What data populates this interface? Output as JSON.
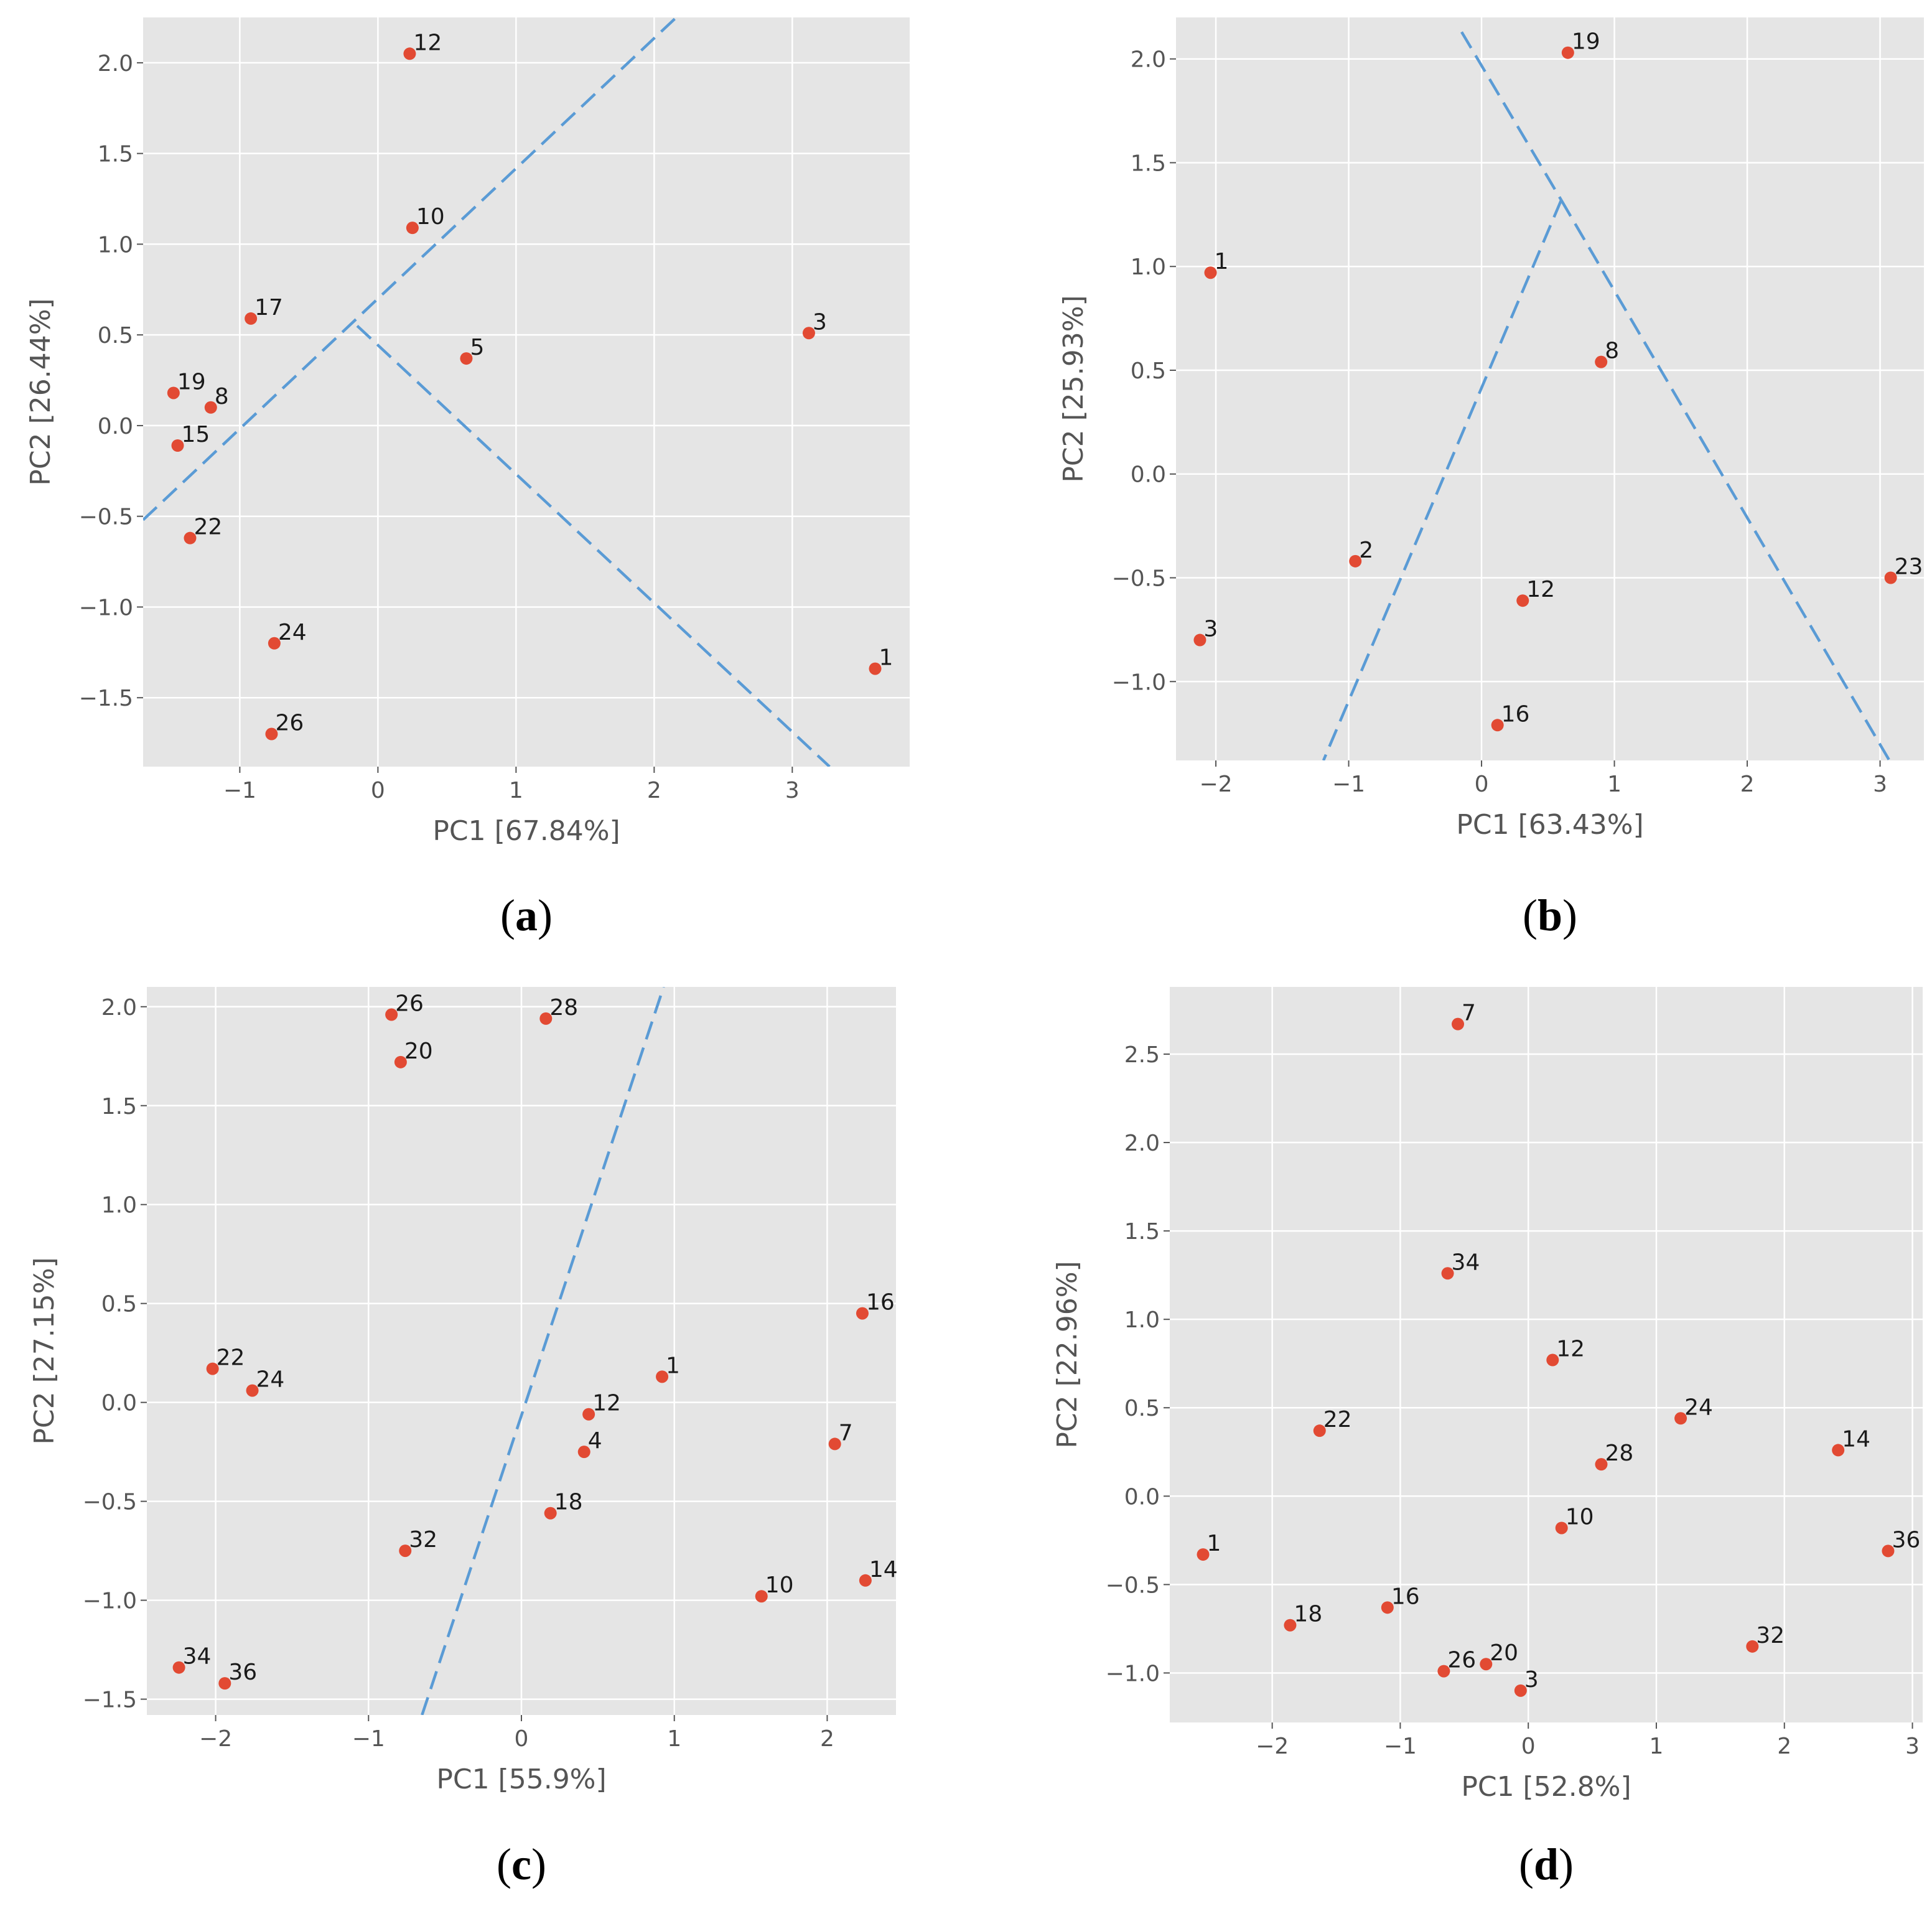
{
  "colors": {
    "panel_background": "#e5e5e5",
    "grid": "#ffffff",
    "point": "#e24a33",
    "divider_line": "#5a9bd5"
  },
  "chart_data": [
    {
      "id": "a",
      "type": "scatter",
      "panel_label": {
        "open": "(",
        "letter": "a",
        "close": ")"
      },
      "xlabel": "PC1 [67.84%]",
      "ylabel": "PC2 [26.44%]",
      "xlim": [
        -1.7,
        3.85
      ],
      "ylim": [
        -1.88,
        2.25
      ],
      "xticks": [
        -1,
        0,
        1,
        2,
        3
      ],
      "xtick_labels": [
        "−1",
        "0",
        "1",
        "2",
        "3"
      ],
      "yticks": [
        -1.5,
        -1.0,
        -0.5,
        0.0,
        0.5,
        1.0,
        1.5,
        2.0
      ],
      "ytick_labels": [
        "−1.5",
        "−1.0",
        "−0.5",
        "0.0",
        "0.5",
        "1.0",
        "1.5",
        "2.0"
      ],
      "points": [
        {
          "label": "12",
          "x": 0.23,
          "y": 2.05
        },
        {
          "label": "10",
          "x": 0.25,
          "y": 1.09
        },
        {
          "label": "17",
          "x": -0.92,
          "y": 0.59
        },
        {
          "label": "5",
          "x": 0.64,
          "y": 0.37
        },
        {
          "label": "3",
          "x": 3.12,
          "y": 0.51
        },
        {
          "label": "19",
          "x": -1.48,
          "y": 0.18
        },
        {
          "label": "8",
          "x": -1.21,
          "y": 0.1
        },
        {
          "label": "15",
          "x": -1.45,
          "y": -0.11
        },
        {
          "label": "22",
          "x": -1.36,
          "y": -0.62
        },
        {
          "label": "24",
          "x": -0.75,
          "y": -1.2
        },
        {
          "label": "1",
          "x": 3.6,
          "y": -1.34
        },
        {
          "label": "26",
          "x": -0.77,
          "y": -1.7
        }
      ],
      "lines": [
        {
          "from": [
            -1.7,
            -0.52
          ],
          "to": [
            2.16,
            2.25
          ]
        },
        {
          "from": [
            -0.15,
            0.55
          ],
          "to": [
            3.27,
            -1.88
          ]
        }
      ]
    },
    {
      "id": "b",
      "type": "scatter",
      "panel_label": {
        "open": "(",
        "letter": "b",
        "close": ")"
      },
      "xlabel": "PC1 [63.43%]",
      "ylabel": "PC2 [25.93%]",
      "xlim": [
        -2.3,
        3.33
      ],
      "ylim": [
        -1.38,
        2.2
      ],
      "xticks": [
        -2,
        -1,
        0,
        1,
        2,
        3
      ],
      "xtick_labels": [
        "−2",
        "−1",
        "0",
        "1",
        "2",
        "3"
      ],
      "yticks": [
        -1.0,
        -0.5,
        0.0,
        0.5,
        1.0,
        1.5,
        2.0
      ],
      "ytick_labels": [
        "−1.0",
        "−0.5",
        "0.0",
        "0.5",
        "1.0",
        "1.5",
        "2.0"
      ],
      "points": [
        {
          "label": "19",
          "x": 0.65,
          "y": 2.03
        },
        {
          "label": "1",
          "x": -2.04,
          "y": 0.97
        },
        {
          "label": "8",
          "x": 0.9,
          "y": 0.54
        },
        {
          "label": "2",
          "x": -0.95,
          "y": -0.42
        },
        {
          "label": "12",
          "x": 0.31,
          "y": -0.61
        },
        {
          "label": "23",
          "x": 3.08,
          "y": -0.5
        },
        {
          "label": "3",
          "x": -2.12,
          "y": -0.8
        },
        {
          "label": "16",
          "x": 0.12,
          "y": -1.21
        }
      ],
      "lines": [
        {
          "from": [
            -0.15,
            2.13
          ],
          "to": [
            0.6,
            1.32
          ]
        },
        {
          "from": [
            0.6,
            1.32
          ],
          "to": [
            3.07,
            -1.38
          ]
        },
        {
          "from": [
            0.6,
            1.32
          ],
          "to": [
            -1.19,
            -1.38
          ]
        }
      ]
    },
    {
      "id": "c",
      "type": "scatter",
      "panel_label": {
        "open": "(",
        "letter": "c",
        "close": ")"
      },
      "xlabel": "PC1 [55.9%]",
      "ylabel": "PC2 [27.15%]",
      "xlim": [
        -2.45,
        2.45
      ],
      "ylim": [
        -1.58,
        2.1
      ],
      "xticks": [
        -2,
        -1,
        0,
        1,
        2
      ],
      "xtick_labels": [
        "−2",
        "−1",
        "0",
        "1",
        "2"
      ],
      "yticks": [
        -1.5,
        -1.0,
        -0.5,
        0.0,
        0.5,
        1.0,
        1.5,
        2.0
      ],
      "ytick_labels": [
        "−1.5",
        "−1.0",
        "−0.5",
        "0.0",
        "0.5",
        "1.0",
        "1.5",
        "2.0"
      ],
      "points": [
        {
          "label": "26",
          "x": -0.85,
          "y": 1.96
        },
        {
          "label": "28",
          "x": 0.16,
          "y": 1.94
        },
        {
          "label": "20",
          "x": -0.79,
          "y": 1.72
        },
        {
          "label": "16",
          "x": 2.23,
          "y": 0.45
        },
        {
          "label": "22",
          "x": -2.02,
          "y": 0.17
        },
        {
          "label": "24",
          "x": -1.76,
          "y": 0.06
        },
        {
          "label": "1",
          "x": 0.92,
          "y": 0.13
        },
        {
          "label": "12",
          "x": 0.44,
          "y": -0.06
        },
        {
          "label": "7",
          "x": 2.05,
          "y": -0.21
        },
        {
          "label": "4",
          "x": 0.41,
          "y": -0.25
        },
        {
          "label": "18",
          "x": 0.19,
          "y": -0.56
        },
        {
          "label": "32",
          "x": -0.76,
          "y": -0.75
        },
        {
          "label": "10",
          "x": 1.57,
          "y": -0.98
        },
        {
          "label": "14",
          "x": 2.25,
          "y": -0.9
        },
        {
          "label": "34",
          "x": -2.24,
          "y": -1.34
        },
        {
          "label": "36",
          "x": -1.94,
          "y": -1.42
        }
      ],
      "lines": [
        {
          "from": [
            -0.65,
            -1.58
          ],
          "to": [
            0.93,
            2.1
          ]
        }
      ]
    },
    {
      "id": "d",
      "type": "scatter",
      "panel_label": {
        "open": "(",
        "letter": "d",
        "close": ")"
      },
      "xlabel": "PC1 [52.8%]",
      "ylabel": "PC2 [22.96%]",
      "xlim": [
        -2.8,
        3.08
      ],
      "ylim": [
        -1.28,
        2.88
      ],
      "xticks": [
        -2,
        -1,
        0,
        1,
        2,
        3
      ],
      "xtick_labels": [
        "−2",
        "−1",
        "0",
        "1",
        "2",
        "3"
      ],
      "yticks": [
        -1.0,
        -0.5,
        0.0,
        0.5,
        1.0,
        1.5,
        2.0,
        2.5
      ],
      "ytick_labels": [
        "−1.0",
        "−0.5",
        "0.0",
        "0.5",
        "1.0",
        "1.5",
        "2.0",
        "2.5"
      ],
      "points": [
        {
          "label": "7",
          "x": -0.55,
          "y": 2.67
        },
        {
          "label": "34",
          "x": -0.63,
          "y": 1.26
        },
        {
          "label": "12",
          "x": 0.19,
          "y": 0.77
        },
        {
          "label": "24",
          "x": 1.19,
          "y": 0.44
        },
        {
          "label": "22",
          "x": -1.63,
          "y": 0.37
        },
        {
          "label": "14",
          "x": 2.42,
          "y": 0.26
        },
        {
          "label": "28",
          "x": 0.57,
          "y": 0.18
        },
        {
          "label": "10",
          "x": 0.26,
          "y": -0.18
        },
        {
          "label": "36",
          "x": 2.81,
          "y": -0.31
        },
        {
          "label": "1",
          "x": -2.54,
          "y": -0.33
        },
        {
          "label": "16",
          "x": -1.1,
          "y": -0.63
        },
        {
          "label": "18",
          "x": -1.86,
          "y": -0.73
        },
        {
          "label": "32",
          "x": 1.75,
          "y": -0.85
        },
        {
          "label": "20",
          "x": -0.33,
          "y": -0.95
        },
        {
          "label": "26",
          "x": -0.66,
          "y": -0.99
        },
        {
          "label": "3",
          "x": -0.06,
          "y": -1.1
        }
      ],
      "lines": []
    }
  ]
}
